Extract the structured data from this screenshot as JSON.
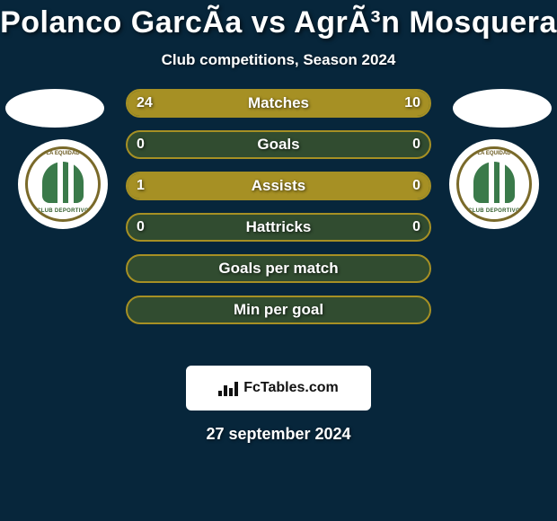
{
  "title": "Polanco GarcÃ­a vs AgrÃ³n Mosquera",
  "subtitle": "Club competitions, Season 2024",
  "date": "27 september 2024",
  "attribution": "FcTables.com",
  "colors": {
    "background": "#07263b",
    "row_border": "#a69024",
    "row_bg": "#314c30",
    "fill": "#a69024",
    "avatar_bg": "#ffffff",
    "text": "#ffffff"
  },
  "clubs": {
    "left": {
      "name": "LA EQUIDAD",
      "sub": "CLUB DEPORTIVO"
    },
    "right": {
      "name": "LA EQUIDAD",
      "sub": "CLUB DEPORTIVO"
    }
  },
  "rows": [
    {
      "label": "Matches",
      "left": "24",
      "right": "10",
      "left_pct": 70.6,
      "right_pct": 29.4,
      "border": "#a69024",
      "bg": "#314c30",
      "fill": "#a69024"
    },
    {
      "label": "Goals",
      "left": "0",
      "right": "0",
      "left_pct": 0,
      "right_pct": 0,
      "border": "#a69024",
      "bg": "#314c30",
      "fill": "#a69024"
    },
    {
      "label": "Assists",
      "left": "1",
      "right": "0",
      "left_pct": 100,
      "right_pct": 0,
      "border": "#a69024",
      "bg": "#314c30",
      "fill": "#a69024"
    },
    {
      "label": "Hattricks",
      "left": "0",
      "right": "0",
      "left_pct": 0,
      "right_pct": 0,
      "border": "#a69024",
      "bg": "#314c30",
      "fill": "#a69024"
    },
    {
      "label": "Goals per match",
      "left": "",
      "right": "",
      "left_pct": 0,
      "right_pct": 0,
      "border": "#a69024",
      "bg": "#314c30",
      "fill": "#a69024"
    },
    {
      "label": "Min per goal",
      "left": "",
      "right": "",
      "left_pct": 0,
      "right_pct": 0,
      "border": "#a69024",
      "bg": "#314c30",
      "fill": "#a69024"
    }
  ]
}
